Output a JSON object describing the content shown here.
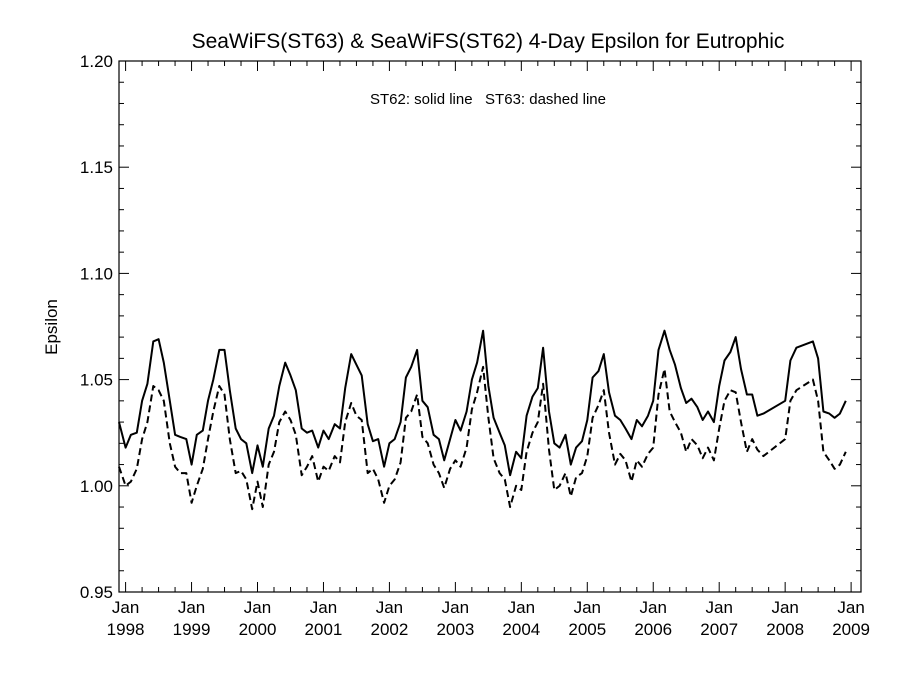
{
  "chart_data": {
    "type": "line",
    "title": "SeaWiFS(ST63) & SeaWiFS(ST62) 4-Day Epsilon for Eutrophic",
    "xlabel": "",
    "ylabel": "Epsilon",
    "annotation": "ST62: solid line   ST63: dashed line",
    "xlim": [
      1997.9,
      2009.15
    ],
    "ylim": [
      0.95,
      1.2
    ],
    "grid": false,
    "x_ticks": [
      1998,
      1999,
      2000,
      2001,
      2002,
      2003,
      2004,
      2005,
      2006,
      2007,
      2008,
      2009
    ],
    "x_tick_labels": [
      {
        "month": "Jan",
        "year": "1998"
      },
      {
        "month": "Jan",
        "year": "1999"
      },
      {
        "month": "Jan",
        "year": "2000"
      },
      {
        "month": "Jan",
        "year": "2001"
      },
      {
        "month": "Jan",
        "year": "2002"
      },
      {
        "month": "Jan",
        "year": "2003"
      },
      {
        "month": "Jan",
        "year": "2004"
      },
      {
        "month": "Jan",
        "year": "2005"
      },
      {
        "month": "Jan",
        "year": "2006"
      },
      {
        "month": "Jan",
        "year": "2007"
      },
      {
        "month": "Jan",
        "year": "2008"
      },
      {
        "month": "Jan",
        "year": "2009"
      }
    ],
    "y_ticks": [
      0.95,
      1.0,
      1.05,
      1.1,
      1.15,
      1.2
    ],
    "y_tick_labels": [
      "0.95",
      "1.00",
      "1.05",
      "1.10",
      "1.15",
      "1.20"
    ],
    "series": [
      {
        "style": "solid",
        "color": "#000000",
        "points": [
          [
            1997.9,
            1.03
          ],
          [
            1998.0,
            1.018
          ],
          [
            1998.08,
            1.024
          ],
          [
            1998.17,
            1.025
          ],
          [
            1998.25,
            1.04
          ],
          [
            1998.33,
            1.048
          ],
          [
            1998.42,
            1.068
          ],
          [
            1998.5,
            1.069
          ],
          [
            1998.58,
            1.058
          ],
          [
            1998.67,
            1.04
          ],
          [
            1998.75,
            1.024
          ],
          [
            1998.83,
            1.023
          ],
          [
            1998.92,
            1.022
          ],
          [
            1999.0,
            1.01
          ],
          [
            1999.08,
            1.024
          ],
          [
            1999.17,
            1.026
          ],
          [
            1999.25,
            1.04
          ],
          [
            1999.33,
            1.05
          ],
          [
            1999.42,
            1.064
          ],
          [
            1999.5,
            1.064
          ],
          [
            1999.58,
            1.045
          ],
          [
            1999.67,
            1.027
          ],
          [
            1999.75,
            1.022
          ],
          [
            1999.83,
            1.02
          ],
          [
            1999.92,
            1.006
          ],
          [
            2000.0,
            1.019
          ],
          [
            2000.08,
            1.009
          ],
          [
            2000.17,
            1.027
          ],
          [
            2000.25,
            1.033
          ],
          [
            2000.33,
            1.047
          ],
          [
            2000.42,
            1.058
          ],
          [
            2000.5,
            1.052
          ],
          [
            2000.58,
            1.045
          ],
          [
            2000.67,
            1.027
          ],
          [
            2000.75,
            1.025
          ],
          [
            2000.83,
            1.026
          ],
          [
            2000.92,
            1.018
          ],
          [
            2001.0,
            1.026
          ],
          [
            2001.08,
            1.022
          ],
          [
            2001.17,
            1.029
          ],
          [
            2001.25,
            1.027
          ],
          [
            2001.33,
            1.046
          ],
          [
            2001.42,
            1.062
          ],
          [
            2001.5,
            1.057
          ],
          [
            2001.58,
            1.052
          ],
          [
            2001.67,
            1.029
          ],
          [
            2001.75,
            1.021
          ],
          [
            2001.83,
            1.022
          ],
          [
            2001.92,
            1.009
          ],
          [
            2002.0,
            1.02
          ],
          [
            2002.08,
            1.022
          ],
          [
            2002.17,
            1.03
          ],
          [
            2002.25,
            1.051
          ],
          [
            2002.33,
            1.056
          ],
          [
            2002.42,
            1.064
          ],
          [
            2002.5,
            1.04
          ],
          [
            2002.58,
            1.037
          ],
          [
            2002.67,
            1.024
          ],
          [
            2002.75,
            1.022
          ],
          [
            2002.83,
            1.012
          ],
          [
            2002.92,
            1.022
          ],
          [
            2003.0,
            1.031
          ],
          [
            2003.08,
            1.026
          ],
          [
            2003.17,
            1.035
          ],
          [
            2003.25,
            1.05
          ],
          [
            2003.33,
            1.058
          ],
          [
            2003.42,
            1.073
          ],
          [
            2003.5,
            1.047
          ],
          [
            2003.58,
            1.032
          ],
          [
            2003.67,
            1.025
          ],
          [
            2003.75,
            1.019
          ],
          [
            2003.83,
            1.005
          ],
          [
            2003.92,
            1.016
          ],
          [
            2004.0,
            1.013
          ],
          [
            2004.08,
            1.033
          ],
          [
            2004.17,
            1.042
          ],
          [
            2004.25,
            1.046
          ],
          [
            2004.33,
            1.065
          ],
          [
            2004.42,
            1.035
          ],
          [
            2004.5,
            1.02
          ],
          [
            2004.58,
            1.018
          ],
          [
            2004.67,
            1.024
          ],
          [
            2004.75,
            1.01
          ],
          [
            2004.83,
            1.018
          ],
          [
            2004.92,
            1.021
          ],
          [
            2005.0,
            1.031
          ],
          [
            2005.08,
            1.051
          ],
          [
            2005.17,
            1.054
          ],
          [
            2005.25,
            1.062
          ],
          [
            2005.33,
            1.044
          ],
          [
            2005.42,
            1.033
          ],
          [
            2005.5,
            1.031
          ],
          [
            2005.58,
            1.027
          ],
          [
            2005.67,
            1.022
          ],
          [
            2005.75,
            1.031
          ],
          [
            2005.83,
            1.028
          ],
          [
            2005.92,
            1.033
          ],
          [
            2006.0,
            1.04
          ],
          [
            2006.08,
            1.064
          ],
          [
            2006.17,
            1.073
          ],
          [
            2006.25,
            1.064
          ],
          [
            2006.33,
            1.057
          ],
          [
            2006.42,
            1.046
          ],
          [
            2006.5,
            1.039
          ],
          [
            2006.58,
            1.041
          ],
          [
            2006.67,
            1.037
          ],
          [
            2006.75,
            1.031
          ],
          [
            2006.83,
            1.035
          ],
          [
            2006.92,
            1.03
          ],
          [
            2007.0,
            1.047
          ],
          [
            2007.08,
            1.059
          ],
          [
            2007.17,
            1.063
          ],
          [
            2007.25,
            1.07
          ],
          [
            2007.33,
            1.055
          ],
          [
            2007.42,
            1.043
          ],
          [
            2007.5,
            1.043
          ],
          [
            2007.58,
            1.033
          ],
          [
            2007.67,
            1.034
          ],
          [
            2008.0,
            1.04
          ],
          [
            2008.08,
            1.059
          ],
          [
            2008.17,
            1.065
          ],
          [
            2008.42,
            1.068
          ],
          [
            2008.5,
            1.06
          ],
          [
            2008.58,
            1.035
          ],
          [
            2008.67,
            1.034
          ],
          [
            2008.75,
            1.032
          ],
          [
            2008.83,
            1.034
          ],
          [
            2008.92,
            1.04
          ]
        ]
      },
      {
        "style": "dashed",
        "color": "#000000",
        "points": [
          [
            1997.9,
            1.009
          ],
          [
            1998.0,
            1.0
          ],
          [
            1998.08,
            1.002
          ],
          [
            1998.17,
            1.008
          ],
          [
            1998.25,
            1.022
          ],
          [
            1998.33,
            1.03
          ],
          [
            1998.42,
            1.047
          ],
          [
            1998.5,
            1.045
          ],
          [
            1998.58,
            1.04
          ],
          [
            1998.67,
            1.02
          ],
          [
            1998.75,
            1.009
          ],
          [
            1998.83,
            1.006
          ],
          [
            1998.92,
            1.006
          ],
          [
            1999.0,
            0.992
          ],
          [
            1999.08,
            1.0
          ],
          [
            1999.17,
            1.008
          ],
          [
            1999.25,
            1.022
          ],
          [
            1999.33,
            1.035
          ],
          [
            1999.42,
            1.047
          ],
          [
            1999.5,
            1.043
          ],
          [
            1999.58,
            1.022
          ],
          [
            1999.67,
            1.006
          ],
          [
            1999.75,
            1.007
          ],
          [
            1999.83,
            1.003
          ],
          [
            1999.92,
            0.989
          ],
          [
            2000.0,
            1.002
          ],
          [
            2000.08,
            0.99
          ],
          [
            2000.17,
            1.01
          ],
          [
            2000.25,
            1.016
          ],
          [
            2000.33,
            1.03
          ],
          [
            2000.42,
            1.035
          ],
          [
            2000.5,
            1.031
          ],
          [
            2000.58,
            1.024
          ],
          [
            2000.67,
            1.005
          ],
          [
            2000.75,
            1.009
          ],
          [
            2000.83,
            1.014
          ],
          [
            2000.92,
            1.002
          ],
          [
            2001.0,
            1.009
          ],
          [
            2001.08,
            1.007
          ],
          [
            2001.17,
            1.014
          ],
          [
            2001.25,
            1.011
          ],
          [
            2001.33,
            1.03
          ],
          [
            2001.42,
            1.039
          ],
          [
            2001.5,
            1.033
          ],
          [
            2001.58,
            1.031
          ],
          [
            2001.67,
            1.006
          ],
          [
            2001.75,
            1.008
          ],
          [
            2001.83,
            1.003
          ],
          [
            2001.92,
            0.992
          ],
          [
            2002.0,
            1.0
          ],
          [
            2002.08,
            1.003
          ],
          [
            2002.17,
            1.011
          ],
          [
            2002.25,
            1.032
          ],
          [
            2002.33,
            1.035
          ],
          [
            2002.42,
            1.043
          ],
          [
            2002.5,
            1.023
          ],
          [
            2002.58,
            1.02
          ],
          [
            2002.67,
            1.01
          ],
          [
            2002.75,
            1.006
          ],
          [
            2002.83,
            0.999
          ],
          [
            2002.92,
            1.008
          ],
          [
            2003.0,
            1.012
          ],
          [
            2003.08,
            1.009
          ],
          [
            2003.17,
            1.018
          ],
          [
            2003.25,
            1.036
          ],
          [
            2003.33,
            1.044
          ],
          [
            2003.42,
            1.056
          ],
          [
            2003.5,
            1.032
          ],
          [
            2003.58,
            1.013
          ],
          [
            2003.67,
            1.006
          ],
          [
            2003.75,
            1.003
          ],
          [
            2003.83,
            0.99
          ],
          [
            2003.92,
            1.0
          ],
          [
            2004.0,
            0.998
          ],
          [
            2004.08,
            1.016
          ],
          [
            2004.17,
            1.025
          ],
          [
            2004.25,
            1.03
          ],
          [
            2004.33,
            1.048
          ],
          [
            2004.42,
            1.017
          ],
          [
            2004.5,
            0.998
          ],
          [
            2004.58,
            1.0
          ],
          [
            2004.67,
            1.006
          ],
          [
            2004.75,
            0.995
          ],
          [
            2004.83,
            1.004
          ],
          [
            2004.92,
            1.006
          ],
          [
            2005.0,
            1.014
          ],
          [
            2005.08,
            1.032
          ],
          [
            2005.17,
            1.038
          ],
          [
            2005.25,
            1.045
          ],
          [
            2005.33,
            1.025
          ],
          [
            2005.42,
            1.01
          ],
          [
            2005.5,
            1.015
          ],
          [
            2005.58,
            1.012
          ],
          [
            2005.67,
            1.002
          ],
          [
            2005.75,
            1.012
          ],
          [
            2005.83,
            1.009
          ],
          [
            2005.92,
            1.015
          ],
          [
            2006.0,
            1.018
          ],
          [
            2006.08,
            1.043
          ],
          [
            2006.17,
            1.055
          ],
          [
            2006.25,
            1.035
          ],
          [
            2006.33,
            1.03
          ],
          [
            2006.42,
            1.025
          ],
          [
            2006.5,
            1.016
          ],
          [
            2006.58,
            1.022
          ],
          [
            2006.67,
            1.019
          ],
          [
            2006.75,
            1.013
          ],
          [
            2006.83,
            1.018
          ],
          [
            2006.92,
            1.012
          ],
          [
            2007.0,
            1.027
          ],
          [
            2007.08,
            1.04
          ],
          [
            2007.17,
            1.045
          ],
          [
            2007.25,
            1.044
          ],
          [
            2007.33,
            1.03
          ],
          [
            2007.42,
            1.016
          ],
          [
            2007.5,
            1.022
          ],
          [
            2007.58,
            1.017
          ],
          [
            2007.67,
            1.014
          ],
          [
            2008.0,
            1.022
          ],
          [
            2008.08,
            1.04
          ],
          [
            2008.17,
            1.045
          ],
          [
            2008.42,
            1.05
          ],
          [
            2008.5,
            1.04
          ],
          [
            2008.58,
            1.016
          ],
          [
            2008.67,
            1.012
          ],
          [
            2008.75,
            1.008
          ],
          [
            2008.83,
            1.01
          ],
          [
            2008.92,
            1.016
          ]
        ]
      }
    ]
  }
}
